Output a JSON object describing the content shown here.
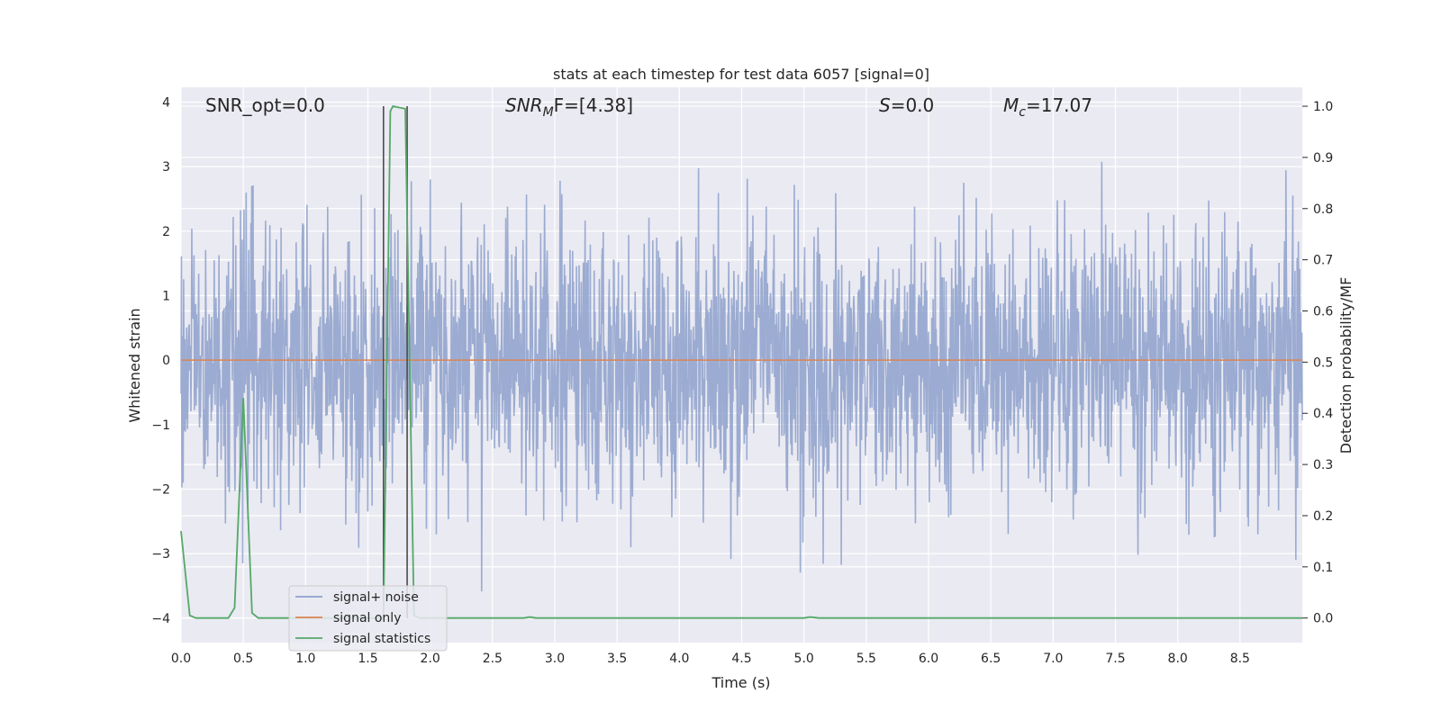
{
  "chart_data": {
    "type": "line",
    "title": "stats at each timestep for test data 6057 [signal=0]",
    "xlabel": "Time (s)",
    "ylabel_left": "Whitened strain",
    "ylabel_right": "Detection probability/MF",
    "xlim": [
      0.0,
      9.0
    ],
    "ylim_left": [
      -4.38,
      4.23
    ],
    "ylim_right": [
      -0.048,
      1.037
    ],
    "x_ticks": [
      "0.0",
      "0.5",
      "1.0",
      "1.5",
      "2.0",
      "2.5",
      "3.0",
      "3.5",
      "4.0",
      "4.5",
      "5.0",
      "5.5",
      "6.0",
      "6.5",
      "7.0",
      "7.5",
      "8.0",
      "8.5"
    ],
    "y_ticks_left": [
      "−4",
      "−3",
      "−2",
      "−1",
      "0",
      "1",
      "2",
      "3",
      "4"
    ],
    "y_ticks_right": [
      "0.0",
      "0.1",
      "0.2",
      "0.3",
      "0.4",
      "0.5",
      "0.6",
      "0.7",
      "0.8",
      "0.9",
      "1.0"
    ],
    "grid": true,
    "legend_position": "lower-left",
    "colors": {
      "plot_bg": "#eaeaf2",
      "grid": "#ffffff",
      "signal_noise": "#8da0cb",
      "signal_only": "#dd8452",
      "signal_statistics": "#55a868",
      "vline": "#4c4c4c"
    },
    "annotations": {
      "snr_opt": "SNR_opt=0.0",
      "snr_mf_main": "SNR",
      "snr_mf_sub": "M",
      "snr_mf_tail": "F=[4.38]",
      "s_main": "S",
      "s_tail": "=0.0",
      "mc_main": "M",
      "mc_sub": "c",
      "mc_tail": "=17.07"
    },
    "vlines": [
      1.625,
      1.815
    ],
    "series": [
      {
        "name": "signal+ noise",
        "axis": "left",
        "style": "noise",
        "amplitude_envelope": [
          1.5,
          3.9
        ]
      },
      {
        "name": "signal only",
        "axis": "left",
        "x": [
          0.0,
          9.0
        ],
        "values": [
          0.0,
          0.0
        ]
      },
      {
        "name": "signal statistics",
        "axis": "right",
        "x": [
          0.0,
          0.07,
          0.12,
          0.38,
          0.43,
          0.5,
          0.57,
          0.62,
          1.55,
          1.625,
          1.68,
          1.7,
          1.8,
          1.87,
          1.92,
          2.75,
          2.8,
          2.85,
          5.0,
          5.05,
          5.12,
          9.0
        ],
        "values": [
          0.17,
          0.005,
          0.0,
          0.0,
          0.02,
          0.43,
          0.01,
          0.0,
          0.0,
          0.0,
          0.99,
          1.0,
          0.995,
          0.005,
          0.0,
          0.0,
          0.002,
          0.0,
          0.0,
          0.002,
          0.0,
          0.0
        ]
      }
    ]
  }
}
